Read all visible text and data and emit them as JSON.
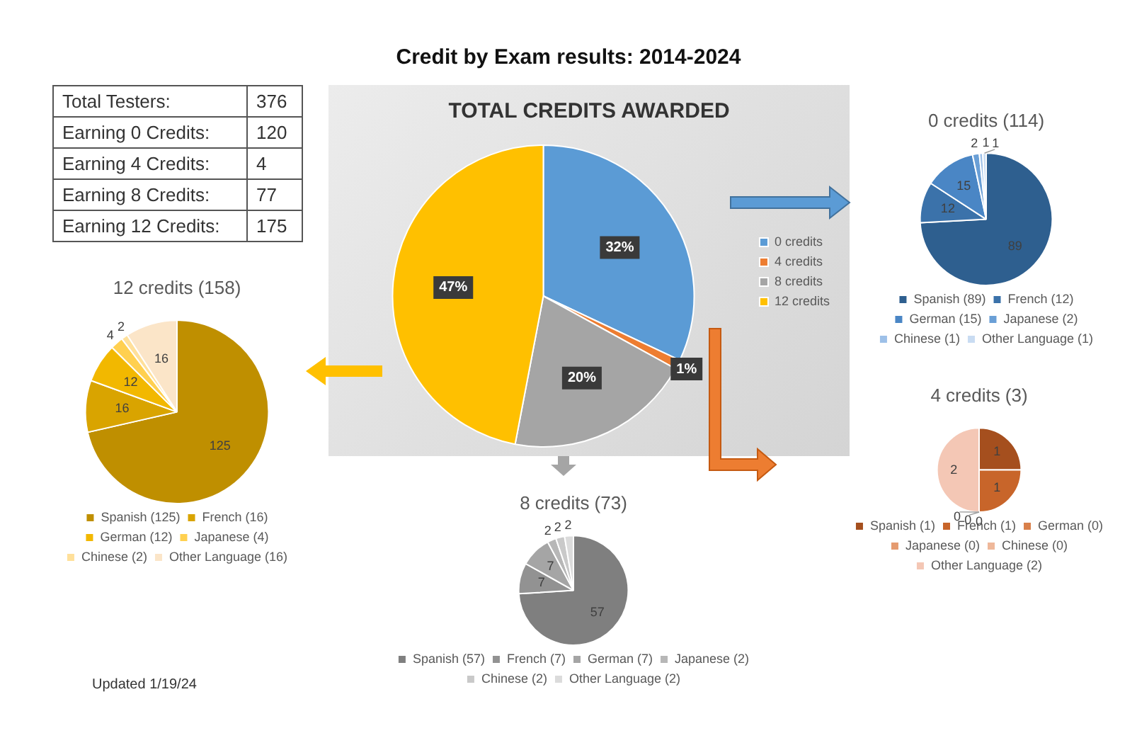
{
  "chart_data": [
    {
      "type": "other",
      "title": "Credit by Exam results: 2014-2024",
      "annotations": [
        "Total Testers:",
        "376",
        "Earning 0 Credits:",
        "120",
        "Earning 4 Credits:",
        "4",
        "Earning 8 Credits:",
        "77",
        "Earning 12 Credits:",
        "175",
        "Updated 1/19/24"
      ]
    },
    {
      "type": "pie",
      "title": "TOTAL CREDITS AWARDED",
      "categories": [
        "0 credits",
        "4 credits",
        "8 credits",
        "12 credits"
      ],
      "values": [
        32,
        1,
        20,
        47
      ],
      "colors": [
        "#5b9bd5",
        "#ed7d31",
        "#a5a5a5",
        "#ffc000"
      ],
      "value_labels": [
        "32%",
        "1%",
        "20%",
        "47%"
      ],
      "legend": "right"
    },
    {
      "type": "pie",
      "title": "0 credits (114)",
      "categories": [
        "Spanish (89)",
        "French (12)",
        "German (15)",
        "Japanese (2)",
        "Chinese (1)",
        "Other Language (1)"
      ],
      "values": [
        89,
        12,
        15,
        2,
        1,
        1
      ],
      "colors": [
        "#2e5f8f",
        "#3b72aa",
        "#4a86c5",
        "#6a9fd6",
        "#9dc0e8",
        "#c9dcf2"
      ],
      "data_labels": true,
      "legend": "bottom"
    },
    {
      "type": "pie",
      "title": "12 credits (158)",
      "categories": [
        "Spanish (125)",
        "French (16)",
        "German (12)",
        "Japanese (4)",
        "Chinese (2)",
        "Other Language (16)"
      ],
      "values": [
        125,
        16,
        12,
        4,
        2,
        16
      ],
      "colors": [
        "#bf8f00",
        "#d9a400",
        "#f2b800",
        "#ffd050",
        "#ffe09a",
        "#fbe5c8"
      ],
      "data_labels": true,
      "legend": "bottom"
    },
    {
      "type": "pie",
      "title": "8 credits (73)",
      "categories": [
        "Spanish (57)",
        "French (7)",
        "German (7)",
        "Japanese (2)",
        "Chinese (2)",
        "Other Language (2)"
      ],
      "values": [
        57,
        7,
        7,
        2,
        2,
        2
      ],
      "colors": [
        "#7f7f7f",
        "#929292",
        "#a5a5a5",
        "#b7b7b7",
        "#c9c9c9",
        "#dbdbdb"
      ],
      "data_labels": true,
      "legend": "bottom"
    },
    {
      "type": "pie",
      "title": "4 credits (3)",
      "categories": [
        "Spanish (1)",
        "French (1)",
        "German (0)",
        "Japanese (0)",
        "Chinese (0)",
        "Other Language (2)"
      ],
      "values": [
        1,
        1,
        0,
        0,
        0,
        2
      ],
      "colors": [
        "#a54f1e",
        "#c8652a",
        "#d9804a",
        "#e59b70",
        "#efb89a",
        "#f4c7b5"
      ],
      "value_labels": [
        "1",
        "1",
        "0",
        "0",
        "0",
        "2"
      ],
      "legend": "bottom"
    }
  ]
}
